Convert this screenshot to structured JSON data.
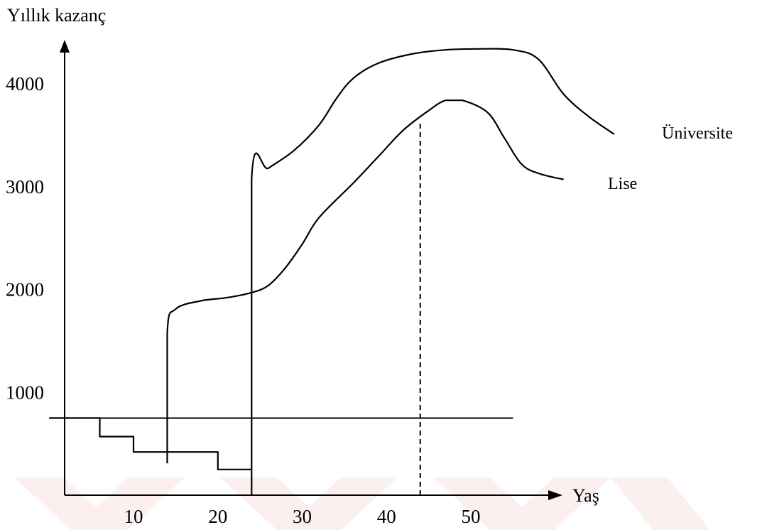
{
  "chart_data": {
    "type": "line",
    "ylabel": "Yıllık kazanç",
    "xlabel": "Yaş",
    "x_ticks": [
      10,
      20,
      30,
      40,
      50
    ],
    "x_tick_labels": [
      "10",
      "20",
      "30",
      "40",
      "50"
    ],
    "y_ticks": [
      1000,
      2000,
      3000,
      4000
    ],
    "y_tick_labels": [
      "1000",
      "2000",
      "3000",
      "4000"
    ],
    "xlim": [
      0,
      60
    ],
    "ylim": [
      0,
      4400
    ],
    "grid": false,
    "series": [
      {
        "name": "Üniversite",
        "points": [
          [
            0,
            750
          ],
          [
            6,
            750
          ],
          [
            6,
            570
          ],
          [
            10,
            570
          ],
          [
            10,
            420
          ],
          [
            20,
            420
          ],
          [
            20,
            250
          ],
          [
            24,
            250
          ],
          [
            24,
            0
          ],
          [
            24,
            3070
          ],
          [
            26,
            3180
          ],
          [
            29,
            3350
          ],
          [
            32,
            3600
          ],
          [
            34,
            3850
          ],
          [
            36,
            4050
          ],
          [
            39,
            4200
          ],
          [
            43,
            4290
          ],
          [
            47,
            4330
          ],
          [
            51,
            4340
          ],
          [
            55,
            4330
          ],
          [
            58,
            4240
          ],
          [
            61,
            3900
          ],
          [
            64,
            3680
          ],
          [
            67,
            3510
          ]
        ]
      },
      {
        "name": "Lise",
        "points": [
          [
            14,
            310
          ],
          [
            14,
            1580
          ],
          [
            15,
            1810
          ],
          [
            18,
            1890
          ],
          [
            21,
            1920
          ],
          [
            24,
            1970
          ],
          [
            26,
            2040
          ],
          [
            28,
            2210
          ],
          [
            30,
            2440
          ],
          [
            32,
            2700
          ],
          [
            36,
            3030
          ],
          [
            39,
            3290
          ],
          [
            42,
            3550
          ],
          [
            45,
            3740
          ],
          [
            47,
            3840
          ],
          [
            49,
            3840
          ],
          [
            52,
            3720
          ],
          [
            54,
            3470
          ],
          [
            56,
            3220
          ],
          [
            58,
            3130
          ],
          [
            61,
            3070
          ]
        ]
      }
    ],
    "reference_lines": [
      {
        "orientation": "horizontal",
        "y": 750,
        "x_from": 0,
        "x_to": 55
      },
      {
        "orientation": "vertical",
        "x": 44,
        "y_from": 0,
        "y_to": 3620,
        "style": "dashed"
      }
    ]
  }
}
